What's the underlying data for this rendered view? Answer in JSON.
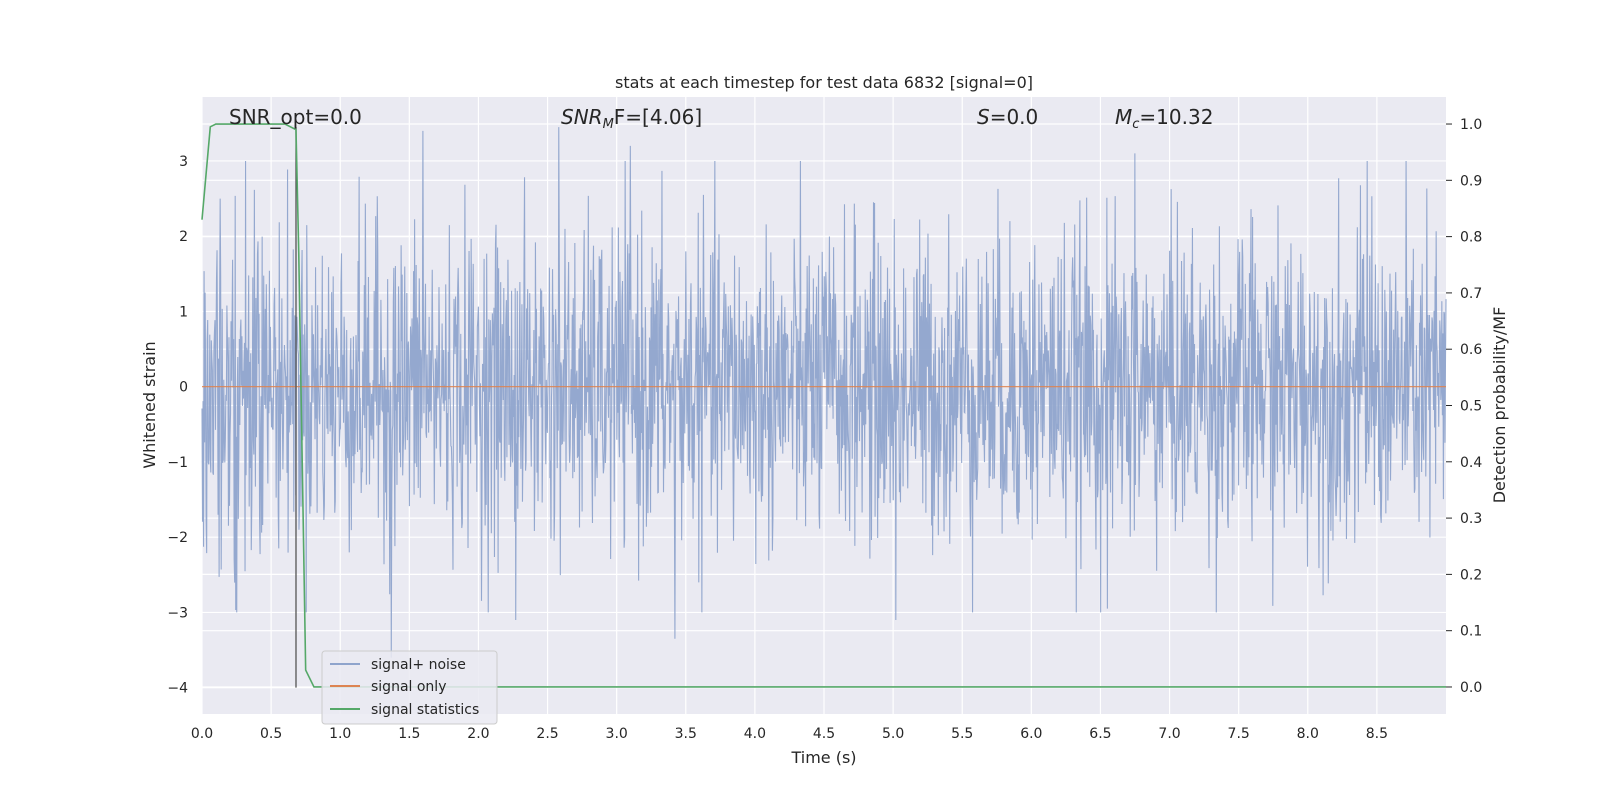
{
  "chart_data": {
    "type": "line",
    "title": "stats at each timestep for test data 6832 [signal=0]",
    "xlabel": "Time (s)",
    "ylabel": "Whitened strain",
    "y2label": "Detection probability/MF",
    "xlim": [
      0.0,
      9.0
    ],
    "ylim": [
      -4.35,
      3.85
    ],
    "y2lim": [
      -0.048,
      1.048
    ],
    "xticks": [
      "0.0",
      "0.5",
      "1.0",
      "1.5",
      "2.0",
      "2.5",
      "3.0",
      "3.5",
      "4.0",
      "4.5",
      "5.0",
      "5.5",
      "6.0",
      "6.5",
      "7.0",
      "7.5",
      "8.0",
      "8.5"
    ],
    "yticks": [
      "3",
      "2",
      "1",
      "0",
      "−1",
      "−2",
      "−3",
      "−4"
    ],
    "y2ticks": [
      "1.0",
      "0.9",
      "0.8",
      "0.7",
      "0.6",
      "0.5",
      "0.4",
      "0.3",
      "0.2",
      "0.1",
      "0.0"
    ],
    "grid": true,
    "legend_position": "lower-left",
    "colors": {
      "background": "#eaeaf2",
      "signal_noise": "#8fa4cc",
      "signal_only": "#dd8452",
      "signal_statistics": "#55a868",
      "marker_line": "#555555"
    },
    "series": [
      {
        "name": "signal+ noise",
        "axis": "left",
        "envelope": {
          "x_range": [
            0.0,
            9.0
          ],
          "typical_amplitude": 1.2,
          "max_peaks": [
            [
              1.6,
              3.4
            ],
            [
              2.58,
              3.45
            ],
            [
              3.1,
              3.2
            ],
            [
              6.75,
              3.1
            ],
            [
              8.43,
              3.0
            ]
          ],
          "min_peaks": [
            [
              1.37,
              -3.6
            ],
            [
              3.42,
              -3.35
            ],
            [
              2.27,
              -3.1
            ],
            [
              5.02,
              -3.1
            ],
            [
              6.55,
              -2.95
            ]
          ]
        }
      },
      {
        "name": "signal only",
        "axis": "left",
        "x": [
          0.0,
          9.0
        ],
        "y": [
          0.0,
          0.0
        ]
      },
      {
        "name": "signal statistics",
        "axis": "right",
        "x": [
          0.0,
          0.06,
          0.1,
          0.15,
          0.6,
          0.68,
          0.7,
          0.75,
          0.81,
          0.9,
          9.0
        ],
        "y": [
          0.83,
          0.995,
          1.0,
          1.0,
          1.0,
          0.99,
          0.77,
          0.03,
          0.0,
          0.0,
          0.0
        ]
      }
    ],
    "vline": {
      "x": 0.68,
      "y_from": -4.0,
      "y_to": 3.45
    },
    "annotations": {
      "snr_opt": "SNR_opt=0.0",
      "snr_mf_var": "SNR",
      "snr_mf_sub": "M",
      "snr_mf_rest": "F=[4.06]",
      "s_var": "S",
      "s_rest": "=0.0",
      "mc_var": "M",
      "mc_sub": "c",
      "mc_rest": "=10.32"
    }
  }
}
